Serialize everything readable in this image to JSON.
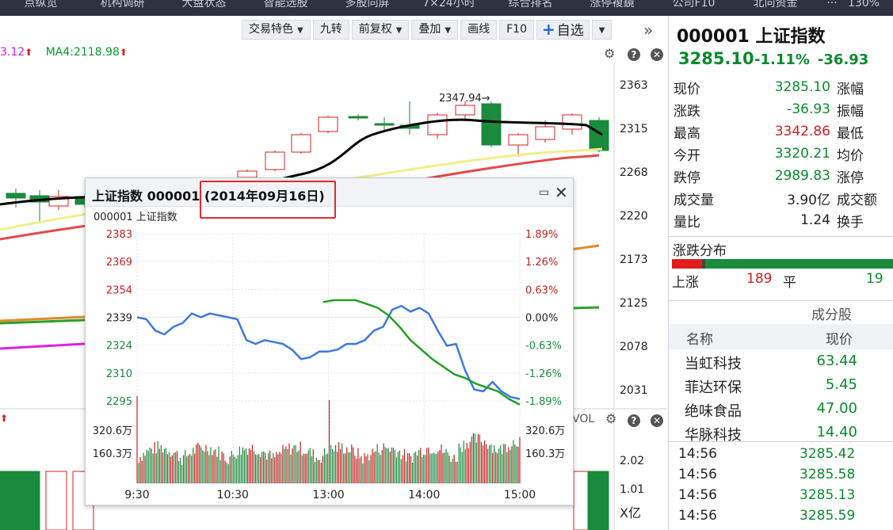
{
  "topnav": {
    "items": [
      "点纵览",
      "机构调研",
      "大盘状态",
      "智能选股",
      "多股同屏",
      "7×24小时",
      "综合排名",
      "涨停複鏡",
      "公司F10",
      "北向资金"
    ],
    "more": "···",
    "zoom": "130%"
  },
  "toolbar": {
    "buttons": [
      {
        "label": "交易特色",
        "caret": true
      },
      {
        "label": "九转",
        "caret": false
      },
      {
        "label": "前复权",
        "caret": true
      },
      {
        "label": "叠加",
        "caret": true
      },
      {
        "label": "画线",
        "caret": false
      },
      {
        "label": "F10",
        "caret": false
      }
    ],
    "zixuan_label": "自选",
    "zixuan_plus": "+",
    "expand_icon": "»"
  },
  "main_chart": {
    "legend_ma3": "3.12",
    "legend_ma4": "MA4:2118.98",
    "up_arrow": "⬆",
    "price_ticks": [
      "2363",
      "2315",
      "2268",
      "2220",
      "2173",
      "2125",
      "2078",
      "2031"
    ],
    "high_label": "2347.94→",
    "vol_label": "VOL",
    "vol_ticks": [
      "2.02",
      "1.01"
    ],
    "x_unit": "X亿",
    "colors": {
      "up": "#d02020",
      "down": "#1a8a3c",
      "ma_black": "#000000",
      "ma_yellow": "#f2ee8a",
      "ma_red": "#e44848",
      "ma_orange": "#e08a2a",
      "ma_magenta": "#e020e0",
      "ma_green": "#2aa02a"
    }
  },
  "popup": {
    "title": "上证指数 000001",
    "date": "(2014年09月16日)",
    "subtitle": "000001 上证指数",
    "min_icon": "▭",
    "close_icon": "✕"
  },
  "chart_data": {
    "type": "line",
    "title": "上证指数 000001",
    "y_left_ticks": [
      "2383",
      "2369",
      "2354",
      "2339",
      "2324",
      "2310",
      "2295"
    ],
    "y_right_ticks": [
      "1.89%",
      "1.26%",
      "0.63%",
      "0.00%",
      "-0.63%",
      "-1.26%",
      "-1.89%"
    ],
    "ylim": [
      2295,
      2383
    ],
    "prev_close": 2339,
    "x_ticks": [
      "9:30",
      "10:30",
      "13:00",
      "14:00",
      "15:00"
    ],
    "volume_ticks": [
      "320.6万",
      "160.3万"
    ],
    "series": [
      {
        "name": "",
        "color": "#3d78e0",
        "values": [
          2339,
          2338,
          2332,
          2330,
          2334,
          2336,
          2341,
          2339,
          2341,
          2340,
          2339,
          2338,
          2327,
          2325,
          2327,
          2326,
          2325,
          2322,
          2317,
          2318,
          2321,
          2321,
          2322,
          2325,
          2325,
          2327,
          2332,
          2334,
          2343,
          2345,
          2342,
          2344,
          2341,
          2332,
          2324,
          2325,
          2311,
          2301,
          2300,
          2305,
          2300,
          2297,
          2296
        ]
      },
      {
        "name": "",
        "color": "#22a022",
        "values": [
          null,
          null,
          null,
          null,
          null,
          null,
          null,
          null,
          null,
          null,
          null,
          null,
          null,
          null,
          null,
          null,
          null,
          2347,
          2348,
          2348,
          2348,
          2346,
          2344,
          2340,
          2334,
          2327,
          2322,
          2317,
          2313,
          2309,
          2307,
          2304,
          2302,
          2300,
          2296,
          2293
        ]
      }
    ]
  },
  "quote": {
    "title": "000001 上证指数",
    "price": "3285.10",
    "chg_pct": "-1.11%",
    "chg_abs": "-36.93",
    "rows": [
      {
        "label": "现价",
        "value": "3285.10",
        "color": "green",
        "right": "涨幅"
      },
      {
        "label": "涨跌",
        "value": "-36.93",
        "color": "green",
        "right": "振幅"
      },
      {
        "label": "最高",
        "value": "3342.86",
        "color": "red",
        "right": "最低"
      },
      {
        "label": "今开",
        "value": "3320.21",
        "color": "green",
        "right": "均价"
      },
      {
        "label": "跌停",
        "value": "2989.83",
        "color": "green",
        "right": "涨停"
      },
      {
        "label": "成交量",
        "value": "3.90亿",
        "color": "dark",
        "right": "成交额"
      },
      {
        "label": "量比",
        "value": "1.24",
        "color": "dark",
        "right": "换手"
      }
    ]
  },
  "distribution": {
    "title": "涨跌分布",
    "up_label": "上涨",
    "up_count": "189",
    "flat_label": "平",
    "flat_count": "19"
  },
  "components": {
    "title": "成分股",
    "head_name": "名称",
    "head_price": "现价",
    "rows": [
      {
        "name": "当虹科技",
        "price": "63.44"
      },
      {
        "name": "菲达环保",
        "price": "5.45"
      },
      {
        "name": "绝味食品",
        "price": "47.00"
      },
      {
        "name": "华脉科技",
        "price": "14.40"
      }
    ]
  },
  "ticks": [
    {
      "time": "14:56",
      "price": "3285.42"
    },
    {
      "time": "14:56",
      "price": "3285.58"
    },
    {
      "time": "14:56",
      "price": "3285.13"
    },
    {
      "time": "14:56",
      "price": "3285.59"
    }
  ]
}
